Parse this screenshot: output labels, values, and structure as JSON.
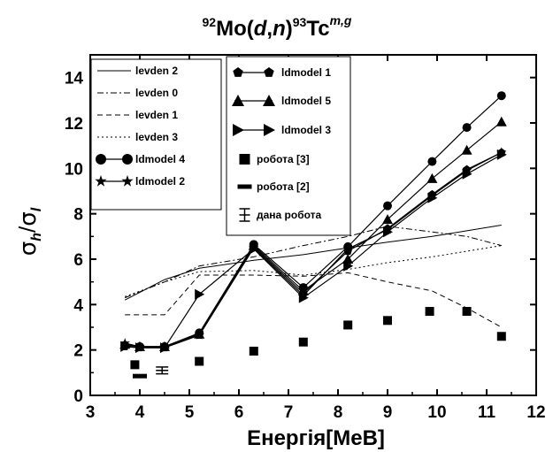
{
  "chart_data": {
    "type": "line",
    "title": {
      "mass_a": "92",
      "element_a": "Mo(",
      "projectile": "d",
      "comma": ",",
      "ejectile": "n",
      "close": ")",
      "mass_b": "93",
      "element_b": "Tc",
      "states": "m,g"
    },
    "xlabel": "Енергія[МеВ]",
    "ylabel": {
      "sigma_1": "σ",
      "sub_1": "h",
      "slash": "/",
      "sigma_2": "σ",
      "sub_2": "l"
    },
    "xlim": [
      3,
      12
    ],
    "ylim": [
      0,
      15
    ],
    "xticks": [
      3,
      4,
      5,
      6,
      7,
      8,
      9,
      10,
      11,
      12
    ],
    "yticks": [
      0,
      2,
      4,
      6,
      8,
      10,
      12,
      14
    ],
    "grid": false,
    "legend_placement": "top-left, two panels",
    "series": [
      {
        "name": "levden 2",
        "style": "solid",
        "x": [
          3.7,
          4.5,
          5.2,
          6.3,
          7.3,
          8.2,
          9.0,
          9.9,
          10.6,
          11.3
        ],
        "y": [
          4.2,
          5.1,
          5.6,
          5.95,
          6.2,
          6.5,
          6.75,
          7.0,
          7.25,
          7.5
        ]
      },
      {
        "name": "levden 0",
        "style": "dashdot",
        "x": [
          3.7,
          4.5,
          5.2,
          6.3,
          7.3,
          8.2,
          9.0,
          9.9,
          10.6,
          11.3
        ],
        "y": [
          4.3,
          5.0,
          5.7,
          6.1,
          6.6,
          7.0,
          7.45,
          7.2,
          7.0,
          6.6
        ]
      },
      {
        "name": "levden 1",
        "style": "dashed",
        "x": [
          3.7,
          4.5,
          5.2,
          6.3,
          7.3,
          8.2,
          9.0,
          9.9,
          10.6,
          11.3
        ],
        "y": [
          3.55,
          3.55,
          5.3,
          5.3,
          5.25,
          5.4,
          5.0,
          4.6,
          3.85,
          3.0
        ]
      },
      {
        "name": "levden 3",
        "style": "dotted",
        "x": [
          3.7,
          4.5,
          5.2,
          6.3,
          7.3,
          8.2,
          9.0,
          9.9,
          10.6,
          11.3
        ],
        "y": [
          4.35,
          5.0,
          5.45,
          5.5,
          5.3,
          5.55,
          5.85,
          6.1,
          6.35,
          6.6
        ]
      },
      {
        "name": "ldmodel 4",
        "style": "line-marker",
        "marker": "circle",
        "x": [
          3.7,
          4.0,
          4.5,
          5.2,
          6.3,
          7.3,
          8.2,
          9.0,
          9.9,
          10.6,
          11.3
        ],
        "y": [
          2.2,
          2.15,
          2.15,
          2.75,
          6.65,
          4.75,
          6.55,
          8.35,
          10.3,
          11.8,
          13.2
        ]
      },
      {
        "name": "ldmodel 2",
        "style": "line-marker",
        "marker": "star",
        "x": [
          3.7,
          4.0,
          4.5,
          5.2,
          6.3,
          7.3,
          8.2,
          9.0,
          9.9,
          10.6,
          11.3
        ],
        "y": [
          2.3,
          2.15,
          2.15,
          2.65,
          6.5,
          4.4,
          6.45,
          7.3,
          8.8,
          9.9,
          10.7
        ]
      },
      {
        "name": "ldmodel 1",
        "style": "line-marker",
        "marker": "pentagon",
        "x": [
          3.7,
          4.0,
          4.5,
          5.2,
          6.3,
          7.3,
          8.2,
          9.0,
          9.9,
          10.6,
          11.3
        ],
        "y": [
          2.15,
          2.1,
          2.1,
          2.65,
          6.55,
          4.5,
          6.35,
          7.35,
          8.85,
          9.95,
          10.7
        ]
      },
      {
        "name": "ldmodel 5",
        "style": "line-marker",
        "marker": "triangle",
        "x": [
          3.7,
          4.0,
          4.5,
          5.2,
          6.3,
          7.3,
          8.2,
          9.0,
          9.9,
          10.6,
          11.3
        ],
        "y": [
          2.25,
          2.15,
          2.15,
          2.7,
          6.6,
          4.6,
          6.0,
          7.75,
          9.55,
          10.8,
          12.05
        ]
      },
      {
        "name": "ldmodel 3",
        "style": "line-marker",
        "marker": "triangle-right",
        "x": [
          3.7,
          4.0,
          4.5,
          5.2,
          6.3,
          7.3,
          8.2,
          9.0,
          9.9,
          10.6,
          11.3
        ],
        "y": [
          2.15,
          2.1,
          2.1,
          4.45,
          6.45,
          4.3,
          5.7,
          7.2,
          8.7,
          9.75,
          10.6
        ]
      },
      {
        "name": "робота [3]",
        "style": "marker",
        "marker": "square",
        "x": [
          3.9,
          5.2,
          6.3,
          7.3,
          8.2,
          9.0,
          9.85,
          10.6,
          11.3
        ],
        "y": [
          1.35,
          1.5,
          1.95,
          2.35,
          3.1,
          3.3,
          3.7,
          3.7,
          2.6
        ]
      },
      {
        "name": "робота  [2]",
        "style": "marker",
        "marker": "dash",
        "x": [
          4.0
        ],
        "y": [
          0.85
        ]
      },
      {
        "name": "дана  робота",
        "style": "errorbar",
        "x": [
          4.45
        ],
        "y": [
          1.1
        ],
        "yerr": [
          0.15
        ]
      }
    ]
  }
}
